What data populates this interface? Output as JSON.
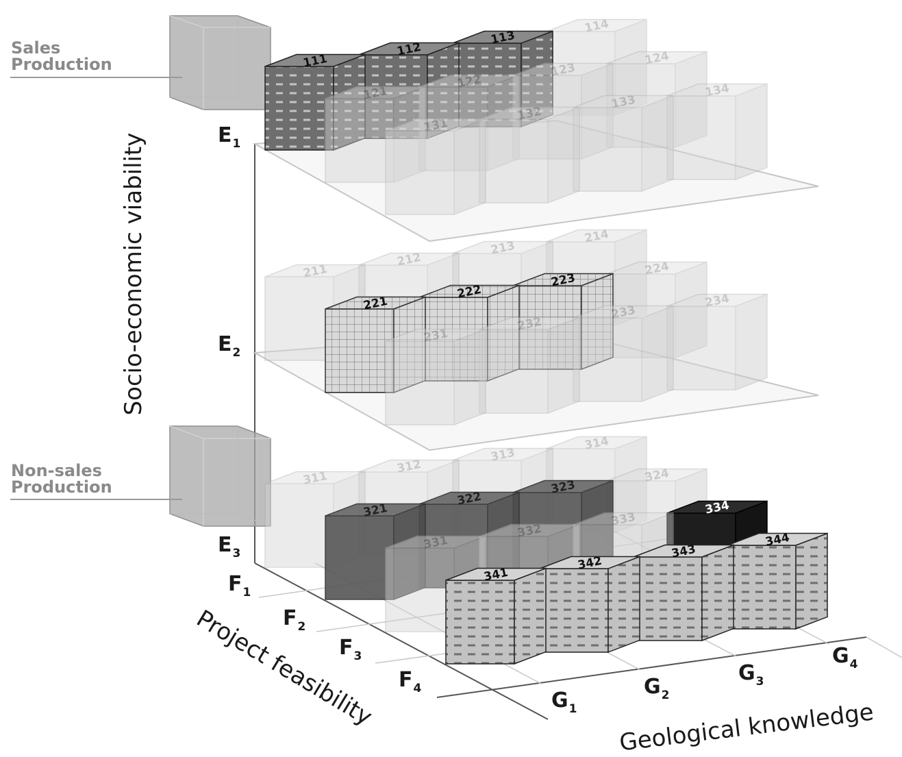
{
  "legend": {
    "sales_line1": "Sales",
    "sales_line2": "Production",
    "nonsales_line1": "Non-sales",
    "nonsales_line2": "Production"
  },
  "axes": {
    "vertical_title": "Socio-economic viability",
    "depth_title": "Project feasibility",
    "horizontal_title": "Geological knowledge",
    "e_labels": [
      {
        "base": "E",
        "sub": "1"
      },
      {
        "base": "E",
        "sub": "2"
      },
      {
        "base": "E",
        "sub": "3"
      }
    ],
    "f_labels": [
      {
        "base": "F",
        "sub": "1"
      },
      {
        "base": "F",
        "sub": "2"
      },
      {
        "base": "F",
        "sub": "3"
      },
      {
        "base": "F",
        "sub": "4"
      }
    ],
    "g_labels": [
      {
        "base": "G",
        "sub": "1"
      },
      {
        "base": "G",
        "sub": "2"
      },
      {
        "base": "G",
        "sub": "3"
      },
      {
        "base": "G",
        "sub": "4"
      }
    ]
  },
  "colors": {
    "ghost_fill": "#d4d4d4",
    "ghost_stroke": "#b0b0b0",
    "ghost_text": "#8a8a8a",
    "e1_hatched": "#6e6e6e",
    "e2_grid": "#cfcfcf",
    "e3_dark": "#5a5a5a",
    "e3_black": "#1e1e1e",
    "e3_front_hatched": "#bdbdbd",
    "legend_gray": "#a8a8a8"
  },
  "cubes": [
    {
      "code": "111",
      "style": "hatched-dark"
    },
    {
      "code": "112",
      "style": "hatched-dark"
    },
    {
      "code": "113",
      "style": "hatched-dark"
    },
    {
      "code": "114",
      "style": "ghost"
    },
    {
      "code": "121",
      "style": "ghost"
    },
    {
      "code": "122",
      "style": "ghost"
    },
    {
      "code": "123",
      "style": "ghost"
    },
    {
      "code": "124",
      "style": "ghost"
    },
    {
      "code": "131",
      "style": "ghost"
    },
    {
      "code": "132",
      "style": "ghost"
    },
    {
      "code": "133",
      "style": "ghost"
    },
    {
      "code": "134",
      "style": "ghost"
    },
    {
      "code": "211",
      "style": "ghost"
    },
    {
      "code": "212",
      "style": "ghost"
    },
    {
      "code": "213",
      "style": "ghost"
    },
    {
      "code": "214",
      "style": "ghost"
    },
    {
      "code": "221",
      "style": "grid"
    },
    {
      "code": "222",
      "style": "grid"
    },
    {
      "code": "223",
      "style": "grid"
    },
    {
      "code": "224",
      "style": "ghost"
    },
    {
      "code": "231",
      "style": "ghost"
    },
    {
      "code": "232",
      "style": "ghost"
    },
    {
      "code": "233",
      "style": "ghost"
    },
    {
      "code": "234",
      "style": "ghost"
    },
    {
      "code": "311",
      "style": "ghost"
    },
    {
      "code": "312",
      "style": "ghost"
    },
    {
      "code": "313",
      "style": "ghost"
    },
    {
      "code": "314",
      "style": "ghost"
    },
    {
      "code": "321",
      "style": "dark"
    },
    {
      "code": "322",
      "style": "dark"
    },
    {
      "code": "323",
      "style": "dark"
    },
    {
      "code": "324",
      "style": "ghost"
    },
    {
      "code": "331",
      "style": "ghost"
    },
    {
      "code": "332",
      "style": "ghost"
    },
    {
      "code": "333",
      "style": "ghost"
    },
    {
      "code": "334",
      "style": "black"
    },
    {
      "code": "341",
      "style": "hatched-light"
    },
    {
      "code": "342",
      "style": "hatched-light"
    },
    {
      "code": "343",
      "style": "hatched-light"
    },
    {
      "code": "344",
      "style": "hatched-light"
    }
  ]
}
